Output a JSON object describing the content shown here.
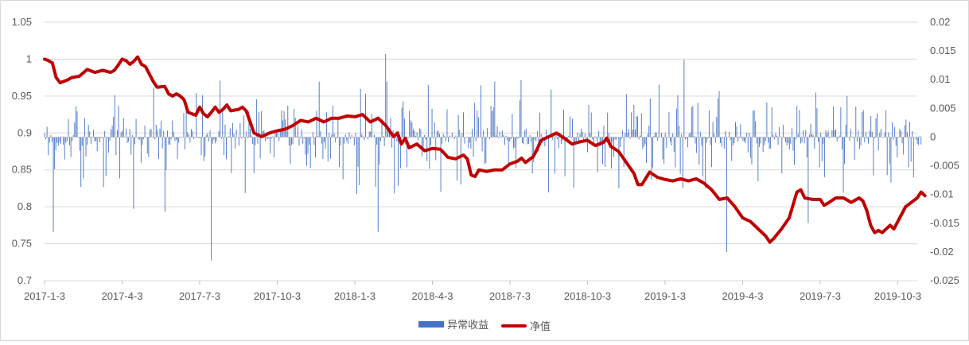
{
  "chart_data": {
    "type": "bar+line",
    "title": "",
    "x_tick_labels": [
      "2017-1-3",
      "2017-4-3",
      "2017-7-3",
      "2017-10-3",
      "2018-1-3",
      "2018-4-3",
      "2018-7-3",
      "2018-10-3",
      "2019-1-3",
      "2019-4-3",
      "2019-7-3",
      "2019-10-3"
    ],
    "y_left": {
      "min": 0.7,
      "max": 1.05,
      "ticks": [
        0.7,
        0.75,
        0.8,
        0.85,
        0.9,
        0.95,
        1,
        1.05
      ],
      "tick_labels": [
        "0.7",
        "0.75",
        "0.8",
        "0.85",
        "0.9",
        "0.95",
        "1",
        "1.05"
      ]
    },
    "y_right": {
      "min": -0.025,
      "max": 0.02,
      "ticks": [
        -0.025,
        -0.02,
        -0.015,
        -0.01,
        -0.005,
        0,
        0.005,
        0.01,
        0.015,
        0.02
      ],
      "tick_labels": [
        "-0.025",
        "-0.02",
        "-0.015",
        "-0.01",
        "-0.005",
        "0",
        "0.005",
        "0.01",
        "0.015",
        "0.02"
      ]
    },
    "series": [
      {
        "name": "异常收益",
        "kind": "bar",
        "axis": "right",
        "color": "#4472C4",
        "x_range": [
          0,
          11.3
        ],
        "count": 700,
        "notable_spikes": [
          [
            0.12,
            -0.0165
          ],
          [
            1.15,
            -0.0125
          ],
          [
            1.55,
            -0.013
          ],
          [
            2.15,
            -0.0215
          ],
          [
            4.3,
            -0.0165
          ],
          [
            4.4,
            -0.0165
          ],
          [
            4.4,
            0.0145
          ],
          [
            8.25,
            0.0135
          ],
          [
            8.8,
            -0.02
          ],
          [
            9.85,
            -0.015
          ],
          [
            11.2,
            -0.007
          ]
        ]
      },
      {
        "name": "净值",
        "kind": "line",
        "axis": "left",
        "color": "#C00000",
        "points": [
          [
            0,
            1.0
          ],
          [
            0.05,
            0.998
          ],
          [
            0.1,
            0.995
          ],
          [
            0.15,
            0.975
          ],
          [
            0.2,
            0.968
          ],
          [
            0.3,
            0.972
          ],
          [
            0.35,
            0.975
          ],
          [
            0.45,
            0.977
          ],
          [
            0.55,
            0.986
          ],
          [
            0.65,
            0.982
          ],
          [
            0.75,
            0.985
          ],
          [
            0.85,
            0.982
          ],
          [
            0.9,
            0.985
          ],
          [
            0.95,
            0.992
          ],
          [
            1.0,
            1.0
          ],
          [
            1.05,
            0.998
          ],
          [
            1.1,
            0.993
          ],
          [
            1.15,
            0.997
          ],
          [
            1.2,
            1.003
          ],
          [
            1.25,
            0.993
          ],
          [
            1.3,
            0.99
          ],
          [
            1.4,
            0.97
          ],
          [
            1.45,
            0.962
          ],
          [
            1.55,
            0.963
          ],
          [
            1.6,
            0.953
          ],
          [
            1.65,
            0.95
          ],
          [
            1.7,
            0.953
          ],
          [
            1.75,
            0.95
          ],
          [
            1.8,
            0.945
          ],
          [
            1.85,
            0.928
          ],
          [
            1.95,
            0.924
          ],
          [
            2.0,
            0.935
          ],
          [
            2.05,
            0.926
          ],
          [
            2.1,
            0.922
          ],
          [
            2.15,
            0.928
          ],
          [
            2.2,
            0.935
          ],
          [
            2.25,
            0.928
          ],
          [
            2.3,
            0.932
          ],
          [
            2.35,
            0.938
          ],
          [
            2.4,
            0.93
          ],
          [
            2.5,
            0.932
          ],
          [
            2.55,
            0.935
          ],
          [
            2.6,
            0.93
          ],
          [
            2.7,
            0.9
          ],
          [
            2.8,
            0.895
          ],
          [
            2.9,
            0.9
          ],
          [
            3.0,
            0.903
          ],
          [
            3.1,
            0.905
          ],
          [
            3.2,
            0.91
          ],
          [
            3.3,
            0.917
          ],
          [
            3.4,
            0.915
          ],
          [
            3.5,
            0.92
          ],
          [
            3.6,
            0.915
          ],
          [
            3.7,
            0.92
          ],
          [
            3.8,
            0.92
          ],
          [
            3.9,
            0.923
          ],
          [
            4.0,
            0.922
          ],
          [
            4.1,
            0.925
          ],
          [
            4.2,
            0.915
          ],
          [
            4.3,
            0.92
          ],
          [
            4.4,
            0.91
          ],
          [
            4.5,
            0.895
          ],
          [
            4.55,
            0.9
          ],
          [
            4.6,
            0.885
          ],
          [
            4.65,
            0.893
          ],
          [
            4.7,
            0.88
          ],
          [
            4.8,
            0.885
          ],
          [
            4.9,
            0.876
          ],
          [
            5.0,
            0.879
          ],
          [
            5.1,
            0.878
          ],
          [
            5.15,
            0.873
          ],
          [
            5.2,
            0.867
          ],
          [
            5.3,
            0.865
          ],
          [
            5.4,
            0.87
          ],
          [
            5.45,
            0.865
          ],
          [
            5.5,
            0.843
          ],
          [
            5.55,
            0.841
          ],
          [
            5.6,
            0.85
          ],
          [
            5.7,
            0.848
          ],
          [
            5.8,
            0.85
          ],
          [
            5.9,
            0.85
          ],
          [
            6.0,
            0.858
          ],
          [
            6.1,
            0.862
          ],
          [
            6.15,
            0.866
          ],
          [
            6.2,
            0.86
          ],
          [
            6.3,
            0.868
          ],
          [
            6.35,
            0.878
          ],
          [
            6.4,
            0.89
          ],
          [
            6.5,
            0.895
          ],
          [
            6.6,
            0.9
          ],
          [
            6.7,
            0.893
          ],
          [
            6.8,
            0.885
          ],
          [
            6.9,
            0.888
          ],
          [
            7.0,
            0.89
          ],
          [
            7.1,
            0.883
          ],
          [
            7.2,
            0.887
          ],
          [
            7.25,
            0.893
          ],
          [
            7.3,
            0.882
          ],
          [
            7.4,
            0.875
          ],
          [
            7.5,
            0.86
          ],
          [
            7.6,
            0.845
          ],
          [
            7.65,
            0.83
          ],
          [
            7.7,
            0.83
          ],
          [
            7.8,
            0.847
          ],
          [
            7.9,
            0.84
          ],
          [
            8.0,
            0.837
          ],
          [
            8.1,
            0.835
          ],
          [
            8.2,
            0.838
          ],
          [
            8.3,
            0.835
          ],
          [
            8.4,
            0.838
          ],
          [
            8.5,
            0.832
          ],
          [
            8.6,
            0.823
          ],
          [
            8.7,
            0.81
          ],
          [
            8.8,
            0.812
          ],
          [
            8.9,
            0.8
          ],
          [
            9.0,
            0.785
          ],
          [
            9.1,
            0.78
          ],
          [
            9.2,
            0.77
          ],
          [
            9.3,
            0.76
          ],
          [
            9.35,
            0.752
          ],
          [
            9.4,
            0.757
          ],
          [
            9.5,
            0.77
          ],
          [
            9.6,
            0.785
          ],
          [
            9.7,
            0.82
          ],
          [
            9.75,
            0.823
          ],
          [
            9.8,
            0.812
          ],
          [
            9.9,
            0.81
          ],
          [
            10.0,
            0.81
          ],
          [
            10.05,
            0.802
          ],
          [
            10.1,
            0.805
          ],
          [
            10.2,
            0.812
          ],
          [
            10.3,
            0.812
          ],
          [
            10.4,
            0.806
          ],
          [
            10.5,
            0.812
          ],
          [
            10.55,
            0.808
          ],
          [
            10.6,
            0.795
          ],
          [
            10.65,
            0.775
          ],
          [
            10.7,
            0.765
          ],
          [
            10.75,
            0.768
          ],
          [
            10.8,
            0.765
          ],
          [
            10.9,
            0.775
          ],
          [
            10.95,
            0.77
          ],
          [
            11.0,
            0.78
          ],
          [
            11.05,
            0.79
          ],
          [
            11.1,
            0.8
          ],
          [
            11.2,
            0.808
          ],
          [
            11.25,
            0.812
          ],
          [
            11.3,
            0.82
          ],
          [
            11.35,
            0.815
          ]
        ]
      }
    ],
    "legend_position": "bottom-center",
    "grid": {
      "horizontal": true,
      "vertical": false,
      "color": "#D9D9D9"
    }
  }
}
